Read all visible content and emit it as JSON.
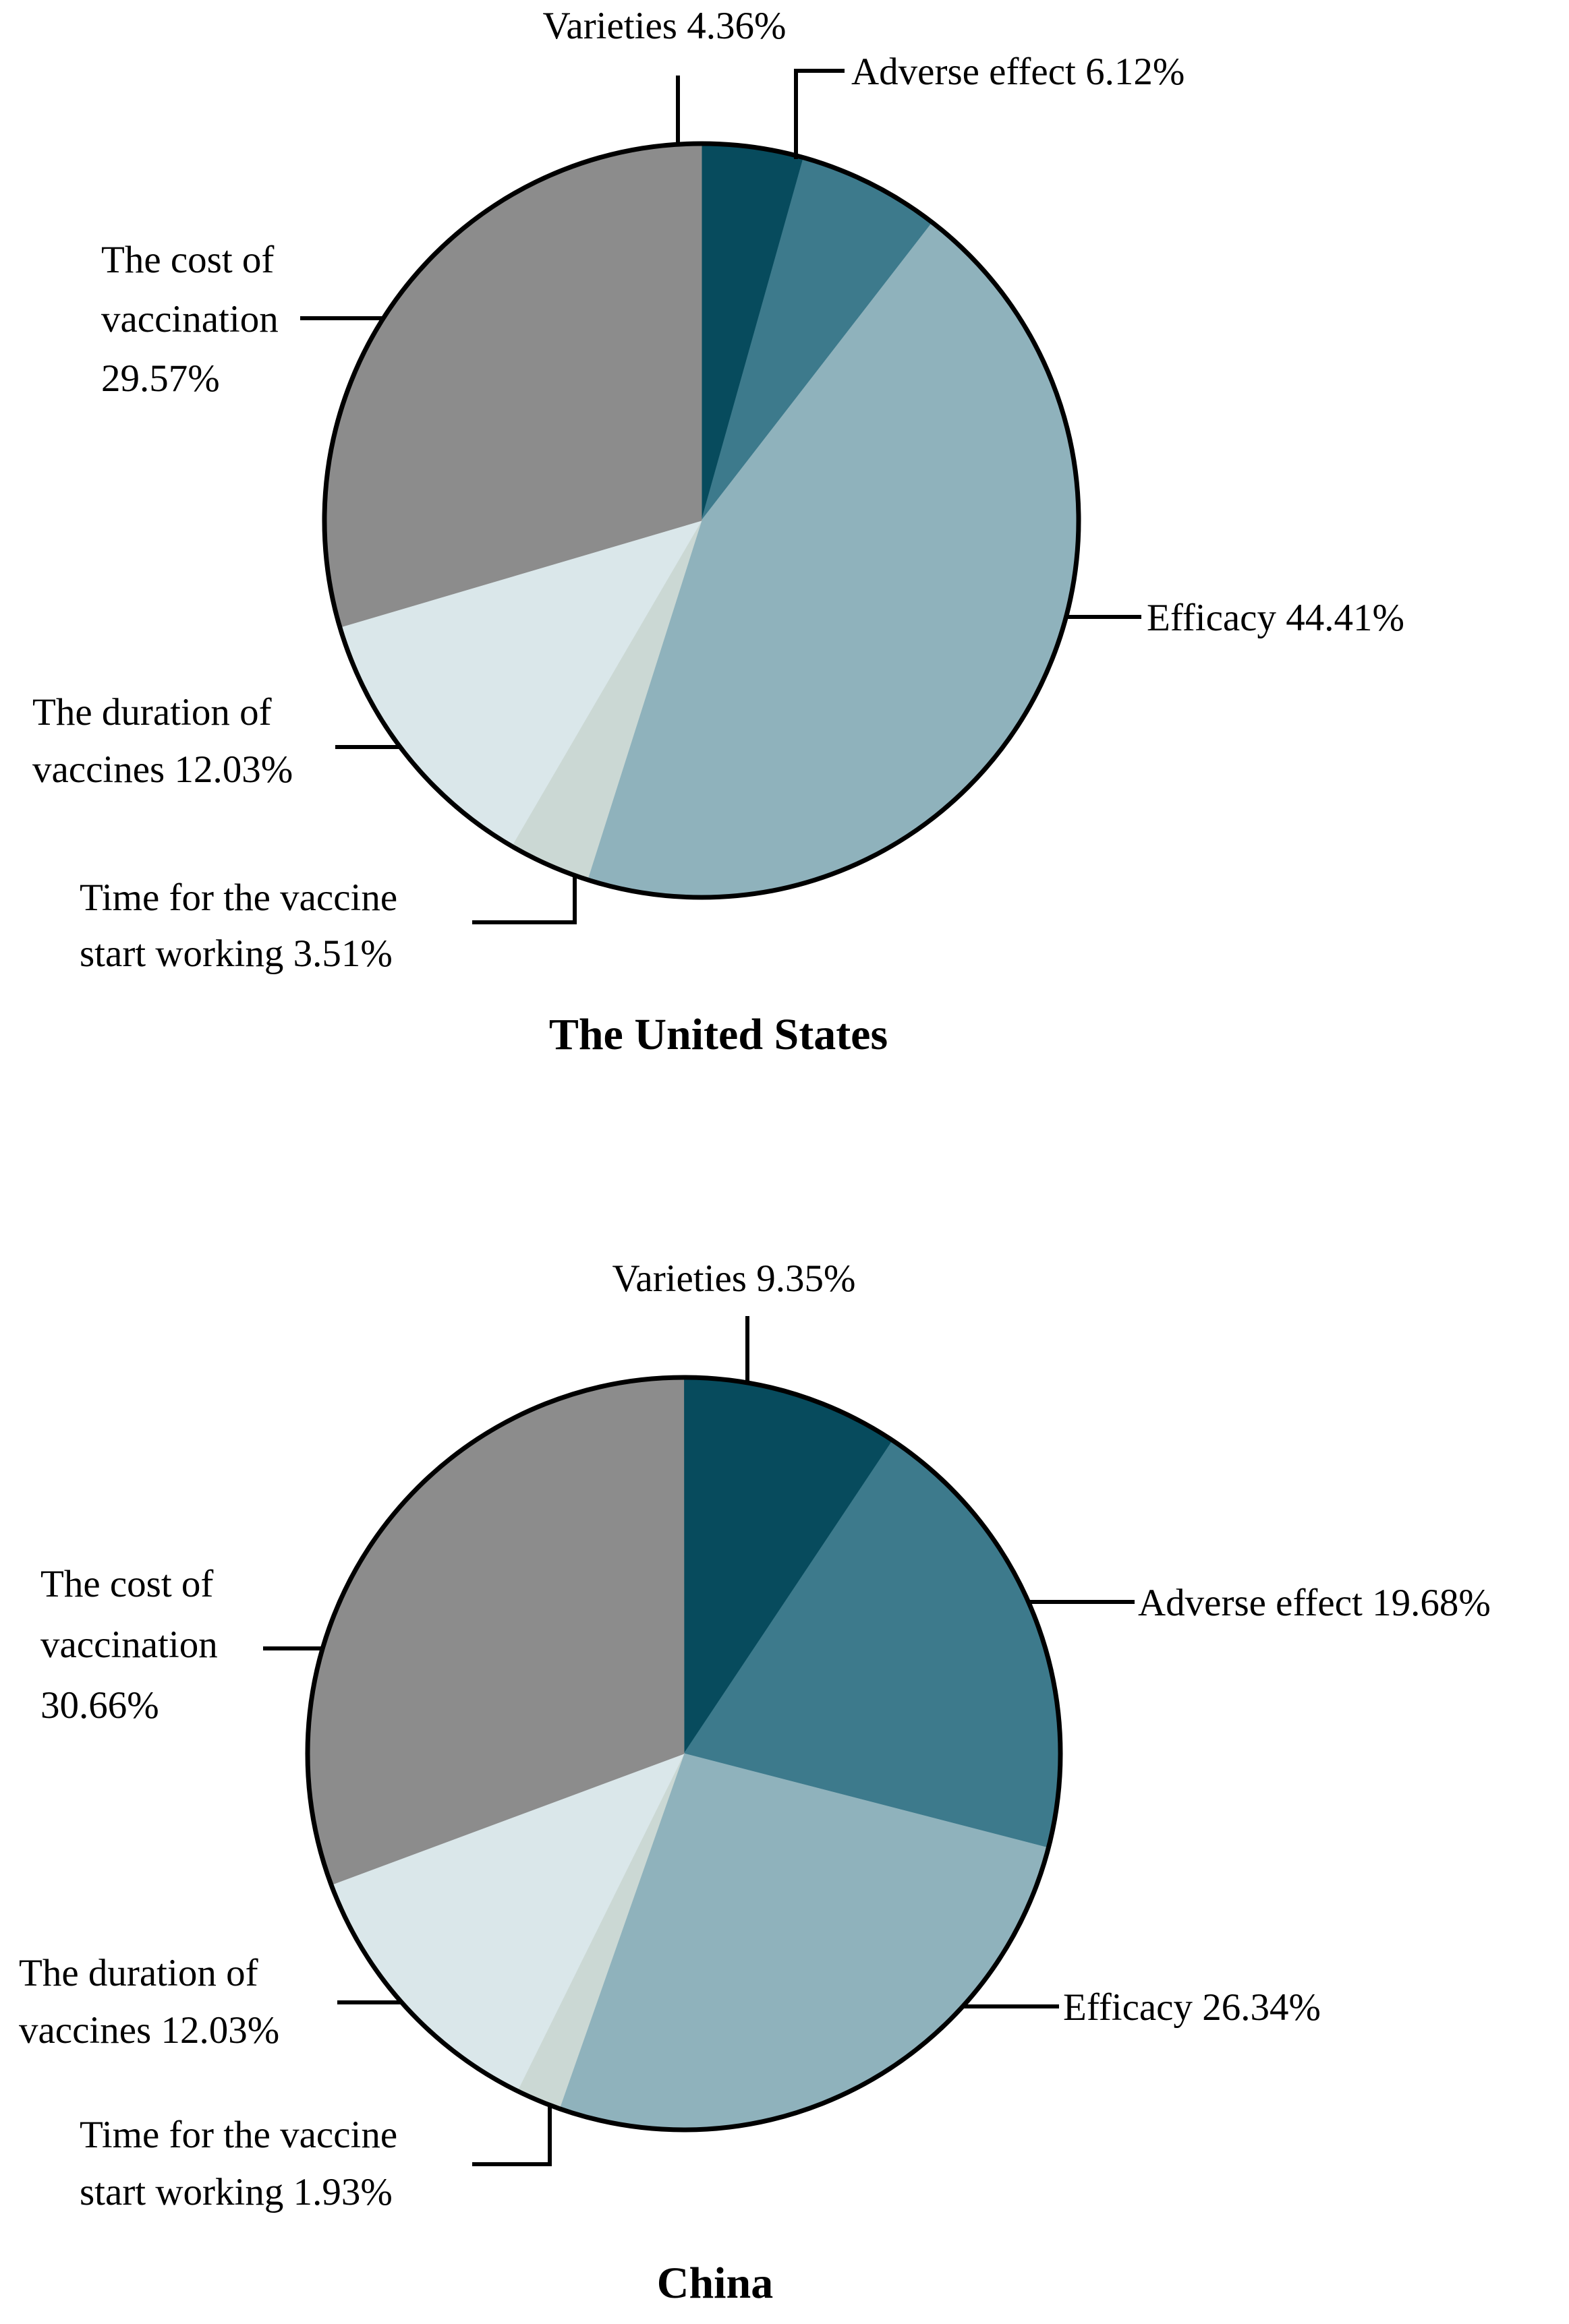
{
  "figure": {
    "background_color": "#ffffff",
    "text_color": "#000000",
    "outline_color": "#000000"
  },
  "chart_data": [
    {
      "type": "pie",
      "title": "The United States",
      "start_angle_deg": 0,
      "direction": "clockwise",
      "legend_position": "callout-labels",
      "slices": [
        {
          "label": "Varieties",
          "value_pct": 4.36,
          "display": "Varieties 4.36%",
          "label_lines": [
            "Varieties 4.36%"
          ],
          "color": "#074B5D"
        },
        {
          "label": "Adverse effect",
          "value_pct": 6.12,
          "display": "Adverse effect 6.12%",
          "label_lines": [
            "Adverse effect 6.12%"
          ],
          "color": "#3D7A8C"
        },
        {
          "label": "Efficacy",
          "value_pct": 44.41,
          "display": "Efficacy 44.41%",
          "label_lines": [
            "Efficacy 44.41%"
          ],
          "color": "#8FB2BC"
        },
        {
          "label": "Time for the vaccine start working",
          "value_pct": 3.51,
          "display": "Time for the vaccine start working 3.51%",
          "label_lines": [
            "Time for the vaccine",
            "start working 3.51%"
          ],
          "color": "#CBD8D4"
        },
        {
          "label": "The duration of vaccines",
          "value_pct": 12.03,
          "display": "The duration of vaccines 12.03%",
          "label_lines": [
            "The duration of",
            "vaccines 12.03%"
          ],
          "color": "#DAE7EA"
        },
        {
          "label": "The cost of vaccination",
          "value_pct": 29.57,
          "display": "The cost of vaccination 29.57%",
          "label_lines": [
            "The cost of",
            "vaccination",
            "29.57%"
          ],
          "color": "#8C8C8C"
        }
      ]
    },
    {
      "type": "pie",
      "title": "China",
      "start_angle_deg": 0,
      "direction": "clockwise",
      "legend_position": "callout-labels",
      "slices": [
        {
          "label": "Varieties",
          "value_pct": 9.35,
          "display": "Varieties 9.35%",
          "label_lines": [
            "Varieties 9.35%"
          ],
          "color": "#074B5D"
        },
        {
          "label": "Adverse effect",
          "value_pct": 19.68,
          "display": "Adverse effect 19.68%",
          "label_lines": [
            "Adverse effect 19.68%"
          ],
          "color": "#3D7A8C"
        },
        {
          "label": "Efficacy",
          "value_pct": 26.34,
          "display": "Efficacy 26.34%",
          "label_lines": [
            "Efficacy 26.34%"
          ],
          "color": "#8FB2BC"
        },
        {
          "label": "Time for the vaccine start working",
          "value_pct": 1.93,
          "display": "Time for the vaccine start working 1.93%",
          "label_lines": [
            "Time for the vaccine",
            "start working 1.93%"
          ],
          "color": "#CBD8D4"
        },
        {
          "label": "The duration of vaccines",
          "value_pct": 12.03,
          "display": "The duration of vaccines 12.03%",
          "label_lines": [
            "The duration of",
            "vaccines 12.03%"
          ],
          "color": "#DAE7EA"
        },
        {
          "label": "The cost of vaccination",
          "value_pct": 30.66,
          "display": "The cost of vaccination 30.66%",
          "label_lines": [
            "The cost of",
            "vaccination",
            "30.66%"
          ],
          "color": "#8C8C8C"
        }
      ]
    }
  ]
}
